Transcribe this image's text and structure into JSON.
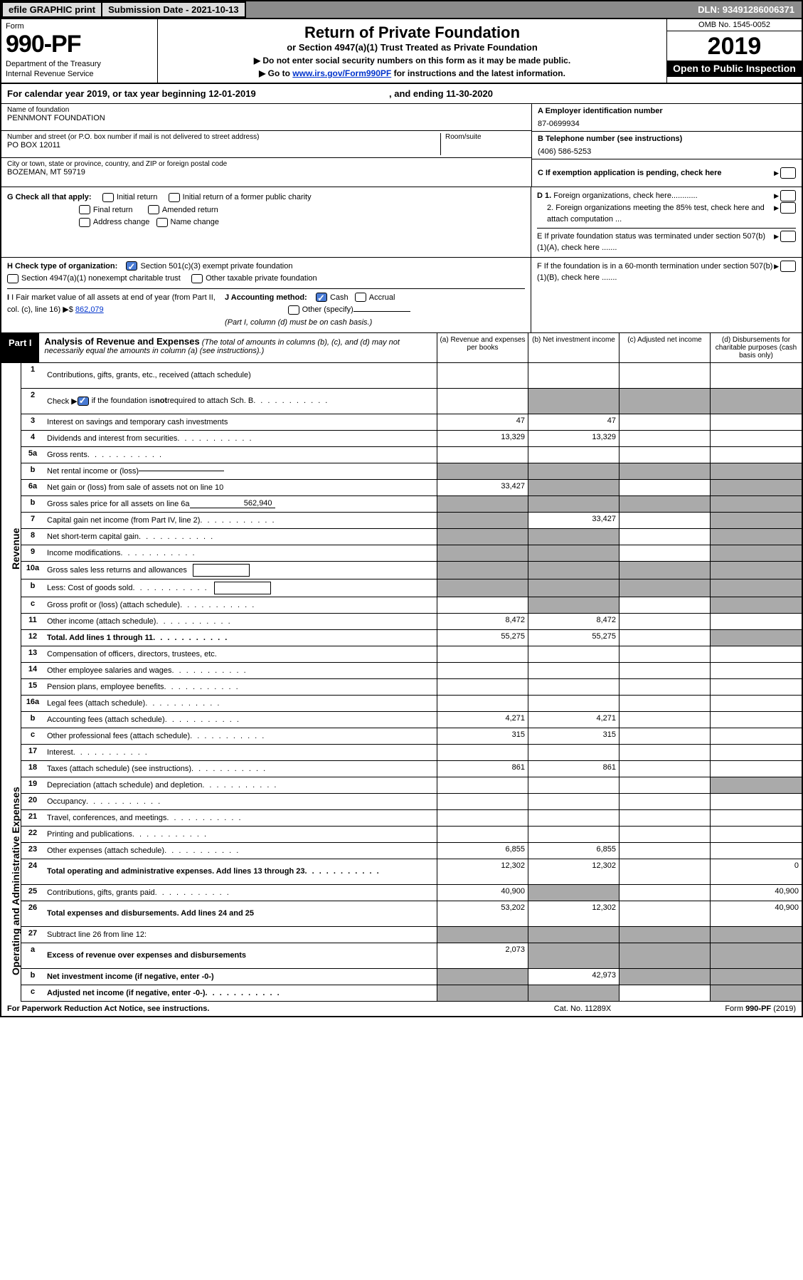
{
  "topbar": {
    "efile": "efile GRAPHIC print",
    "sub_label": "Submission Date - 2021-10-13",
    "dln": "DLN: 93491286006371"
  },
  "header": {
    "form": "Form",
    "num": "990-PF",
    "dept1": "Department of the Treasury",
    "dept2": "Internal Revenue Service",
    "title": "Return of Private Foundation",
    "sub": "or Section 4947(a)(1) Trust Treated as Private Foundation",
    "note1": "▶ Do not enter social security numbers on this form as it may be made public.",
    "note2_pre": "▶ Go to ",
    "note2_link": "www.irs.gov/Form990PF",
    "note2_post": " for instructions and the latest information.",
    "omb": "OMB No. 1545-0052",
    "year": "2019",
    "open": "Open to Public Inspection"
  },
  "cal": {
    "label": "For calendar year 2019, or tax year beginning 12-01-2019",
    "end": ", and ending 11-30-2020"
  },
  "ident": {
    "name_lab": "Name of foundation",
    "name": "PENNMONT FOUNDATION",
    "addr_lab": "Number and street (or P.O. box number if mail is not delivered to street address)",
    "addr": "PO BOX 12011",
    "room_lab": "Room/suite",
    "city_lab": "City or town, state or province, country, and ZIP or foreign postal code",
    "city": "BOZEMAN, MT  59719",
    "a_lab": "A Employer identification number",
    "a_val": "87-0699934",
    "b_lab": "B Telephone number (see instructions)",
    "b_val": "(406) 586-5253",
    "c_lab": "C If exemption application is pending, check here"
  },
  "g": {
    "lab": "G Check all that apply:",
    "o1": "Initial return",
    "o2": "Initial return of a former public charity",
    "o3": "Final return",
    "o4": "Amended return",
    "o5": "Address change",
    "o6": "Name change"
  },
  "d": {
    "d1": "D 1. Foreign organizations, check here............",
    "d2": "2. Foreign organizations meeting the 85% test, check here and attach computation ...",
    "e": "E  If private foundation status was terminated under section 507(b)(1)(A), check here ......."
  },
  "h": {
    "lab": "H Check type of organization:",
    "o1": "Section 501(c)(3) exempt private foundation",
    "o2": "Section 4947(a)(1) nonexempt charitable trust",
    "o3": "Other taxable private foundation"
  },
  "i": {
    "lab": "I Fair market value of all assets at end of year (from Part II, col. (c), line 16)",
    "val": "862,079"
  },
  "j": {
    "lab": "J Accounting method:",
    "o1": "Cash",
    "o2": "Accrual",
    "o3": "Other (specify)",
    "note": "(Part I, column (d) must be on cash basis.)"
  },
  "f": {
    "lab": "F  If the foundation is in a 60-month termination under section 507(b)(1)(B), check here ......."
  },
  "part1": {
    "tag": "Part I",
    "title": "Analysis of Revenue and Expenses",
    "desc": "(The total of amounts in columns (b), (c), and (d) may not necessarily equal the amounts in column (a) (see instructions).)",
    "ca": "(a)   Revenue and expenses per books",
    "cb": "(b)   Net investment income",
    "cc": "(c)   Adjusted net income",
    "cd": "(d)  Disbursements for charitable purposes (cash basis only)"
  },
  "side_rev": "Revenue",
  "side_op": "Operating and Administrative Expenses",
  "rows": [
    {
      "n": "1",
      "t": "Contributions, gifts, grants, etc., received (attach schedule)",
      "a": "",
      "b": "",
      "c": "",
      "d": "",
      "tall": true
    },
    {
      "n": "2",
      "t": "Check ▶ ☑ if the foundation is not required to attach Sch. B",
      "dots": true,
      "a": "",
      "b": "",
      "c": "",
      "d": "",
      "g": [
        "b",
        "c",
        "d"
      ],
      "tall": true,
      "bold_not": true
    },
    {
      "n": "3",
      "t": "Interest on savings and temporary cash investments",
      "a": "47",
      "b": "47",
      "c": "",
      "d": ""
    },
    {
      "n": "4",
      "t": "Dividends and interest from securities",
      "dots": true,
      "a": "13,329",
      "b": "13,329",
      "c": "",
      "d": ""
    },
    {
      "n": "5a",
      "t": "Gross rents",
      "dots": true,
      "a": "",
      "b": "",
      "c": "",
      "d": ""
    },
    {
      "n": "b",
      "t": "Net rental income or (loss)",
      "under": true,
      "a": "",
      "b": "",
      "c": "",
      "d": "",
      "g": [
        "a",
        "b",
        "c",
        "d"
      ]
    },
    {
      "n": "6a",
      "t": "Net gain or (loss) from sale of assets not on line 10",
      "a": "33,427",
      "b": "",
      "c": "",
      "d": "",
      "g": [
        "b",
        "d"
      ]
    },
    {
      "n": "b",
      "t": "Gross sales price for all assets on line 6a",
      "under": true,
      "uval": "562,940",
      "a": "",
      "b": "",
      "c": "",
      "d": "",
      "g": [
        "a",
        "b",
        "c",
        "d"
      ]
    },
    {
      "n": "7",
      "t": "Capital gain net income (from Part IV, line 2)",
      "dots": true,
      "a": "",
      "b": "33,427",
      "c": "",
      "d": "",
      "g": [
        "a",
        "d"
      ]
    },
    {
      "n": "8",
      "t": "Net short-term capital gain",
      "dots": true,
      "a": "",
      "b": "",
      "c": "",
      "d": "",
      "g": [
        "a",
        "b",
        "d"
      ]
    },
    {
      "n": "9",
      "t": "Income modifications",
      "dots": true,
      "a": "",
      "b": "",
      "c": "",
      "d": "",
      "g": [
        "a",
        "b",
        "d"
      ]
    },
    {
      "n": "10a",
      "t": "Gross sales less returns and allowances",
      "inbox": true,
      "a": "",
      "b": "",
      "c": "",
      "d": "",
      "g": [
        "a",
        "b",
        "c",
        "d"
      ]
    },
    {
      "n": "b",
      "t": "Less: Cost of goods sold",
      "dots": true,
      "inbox": true,
      "a": "",
      "b": "",
      "c": "",
      "d": "",
      "g": [
        "a",
        "b",
        "c",
        "d"
      ]
    },
    {
      "n": "c",
      "t": "Gross profit or (loss) (attach schedule)",
      "dots": true,
      "a": "",
      "b": "",
      "c": "",
      "d": "",
      "g": [
        "b",
        "d"
      ]
    },
    {
      "n": "11",
      "t": "Other income (attach schedule)",
      "dots": true,
      "a": "8,472",
      "b": "8,472",
      "c": "",
      "d": ""
    },
    {
      "n": "12",
      "t": "Total. Add lines 1 through 11",
      "dots": true,
      "b_": true,
      "a": "55,275",
      "b": "55,275",
      "c": "",
      "d": "",
      "g": [
        "d"
      ],
      "hr": true
    },
    {
      "n": "13",
      "t": "Compensation of officers, directors, trustees, etc.",
      "a": "",
      "b": "",
      "c": "",
      "d": ""
    },
    {
      "n": "14",
      "t": "Other employee salaries and wages",
      "dots": true,
      "a": "",
      "b": "",
      "c": "",
      "d": ""
    },
    {
      "n": "15",
      "t": "Pension plans, employee benefits",
      "dots": true,
      "a": "",
      "b": "",
      "c": "",
      "d": ""
    },
    {
      "n": "16a",
      "t": "Legal fees (attach schedule)",
      "dots": true,
      "a": "",
      "b": "",
      "c": "",
      "d": ""
    },
    {
      "n": "b",
      "t": "Accounting fees (attach schedule)",
      "dots": true,
      "a": "4,271",
      "b": "4,271",
      "c": "",
      "d": ""
    },
    {
      "n": "c",
      "t": "Other professional fees (attach schedule)",
      "dots": true,
      "a": "315",
      "b": "315",
      "c": "",
      "d": ""
    },
    {
      "n": "17",
      "t": "Interest",
      "dots": true,
      "a": "",
      "b": "",
      "c": "",
      "d": ""
    },
    {
      "n": "18",
      "t": "Taxes (attach schedule) (see instructions)",
      "dots": true,
      "a": "861",
      "b": "861",
      "c": "",
      "d": ""
    },
    {
      "n": "19",
      "t": "Depreciation (attach schedule) and depletion",
      "dots": true,
      "a": "",
      "b": "",
      "c": "",
      "d": "",
      "g": [
        "d"
      ]
    },
    {
      "n": "20",
      "t": "Occupancy",
      "dots": true,
      "a": "",
      "b": "",
      "c": "",
      "d": ""
    },
    {
      "n": "21",
      "t": "Travel, conferences, and meetings",
      "dots": true,
      "a": "",
      "b": "",
      "c": "",
      "d": ""
    },
    {
      "n": "22",
      "t": "Printing and publications",
      "dots": true,
      "a": "",
      "b": "",
      "c": "",
      "d": ""
    },
    {
      "n": "23",
      "t": "Other expenses (attach schedule)",
      "dots": true,
      "a": "6,855",
      "b": "6,855",
      "c": "",
      "d": ""
    },
    {
      "n": "24",
      "t": "Total operating and administrative expenses. Add lines 13 through 23",
      "dots": true,
      "b_": true,
      "a": "12,302",
      "b": "12,302",
      "c": "",
      "d": "0",
      "tall": true
    },
    {
      "n": "25",
      "t": "Contributions, gifts, grants paid",
      "dots": true,
      "a": "40,900",
      "b": "",
      "c": "",
      "d": "40,900",
      "g": [
        "b"
      ]
    },
    {
      "n": "26",
      "t": "Total expenses and disbursements. Add lines 24 and 25",
      "b_": true,
      "a": "53,202",
      "b": "12,302",
      "c": "",
      "d": "40,900",
      "tall": true,
      "hr": true
    },
    {
      "n": "27",
      "t": "Subtract line 26 from line 12:",
      "a": "",
      "b": "",
      "c": "",
      "d": "",
      "g": [
        "a",
        "b",
        "c",
        "d"
      ]
    },
    {
      "n": "a",
      "t": "Excess of revenue over expenses and disbursements",
      "b_": true,
      "a": "2,073",
      "b": "",
      "c": "",
      "d": "",
      "g": [
        "b",
        "c",
        "d"
      ],
      "tall": true
    },
    {
      "n": "b",
      "t": "Net investment income (if negative, enter -0-)",
      "b_": true,
      "a": "",
      "b": "42,973",
      "c": "",
      "d": "",
      "g": [
        "a",
        "c",
        "d"
      ]
    },
    {
      "n": "c",
      "t": "Adjusted net income (if negative, enter -0-)",
      "dots": true,
      "b_": true,
      "a": "",
      "b": "",
      "c": "",
      "d": "",
      "g": [
        "a",
        "b",
        "d"
      ]
    }
  ],
  "foot": {
    "a": "For Paperwork Reduction Act Notice, see instructions.",
    "b": "Cat. No. 11289X",
    "c": "Form 990-PF (2019)"
  },
  "colors": {
    "topbar_bg": "#8b8b8b",
    "btn_bg": "#dcdcdc",
    "link": "#0033cc",
    "grey_cell": "#aaaaaa",
    "check_bg": "#4a7bd4"
  }
}
